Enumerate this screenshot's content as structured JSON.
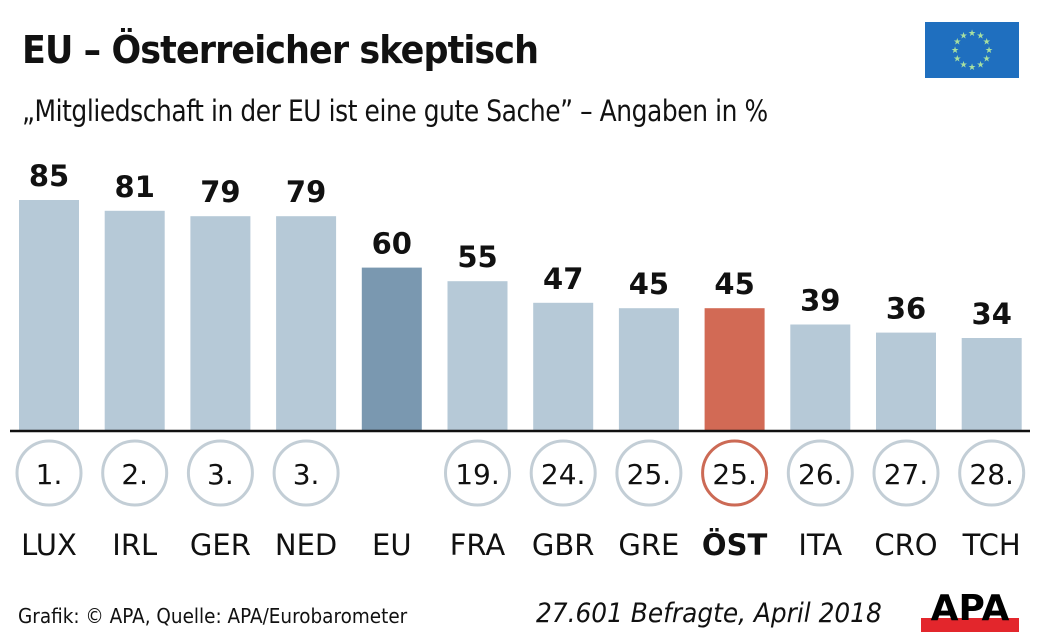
{
  "header": {
    "title": "EU – Österreicher skeptisch",
    "subtitle": "„Mitgliedschaft in der EU ist eine gute Sache” – Angaben in %",
    "flag_icon": "eu-flag-icon"
  },
  "colors": {
    "bar_default": "#b6c9d7",
    "bar_eu": "#7a98b0",
    "bar_highlight": "#d26a55",
    "circle_default": "#c3ced6",
    "circle_highlight": "#cc6a55",
    "flag_blue": "#1f6fbf",
    "flag_star": "#a8e0a0",
    "logo_red": "#e3262c"
  },
  "chart_data": {
    "type": "bar",
    "title": "EU – Österreicher skeptisch",
    "subtitle": "„Mitgliedschaft in der EU ist eine gute Sache” – Angaben in %",
    "xlabel": "",
    "ylabel": "Angaben in %",
    "ylim": [
      0,
      85
    ],
    "grid": false,
    "categories": [
      "LUX",
      "IRL",
      "GER",
      "NED",
      "EU",
      "FRA",
      "GBR",
      "GRE",
      "ÖST",
      "ITA",
      "CRO",
      "TCH"
    ],
    "values": [
      85,
      81,
      79,
      79,
      60,
      55,
      47,
      45,
      45,
      39,
      36,
      34
    ],
    "value_labels": [
      "85",
      "81",
      "79",
      "79",
      "60",
      "55",
      "47",
      "45",
      "45",
      "39",
      "36",
      "34"
    ],
    "ranks": [
      "1.",
      "2.",
      "3.",
      "3.",
      "",
      "19.",
      "24.",
      "25.",
      "25.",
      "26.",
      "27.",
      "28."
    ],
    "highlight": [
      "default",
      "default",
      "default",
      "default",
      "eu",
      "default",
      "default",
      "default",
      "highlight",
      "default",
      "default",
      "default"
    ]
  },
  "footer": {
    "source": "Grafik: © APA, Quelle: APA/Eurobarometer",
    "note": "27.601 Befragte, April 2018",
    "logo_text": "APA"
  }
}
